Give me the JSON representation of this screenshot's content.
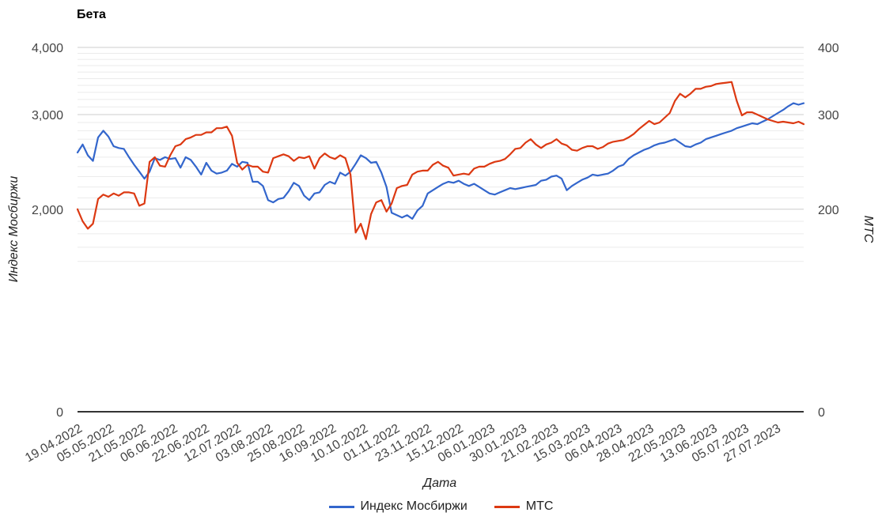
{
  "chart_data": {
    "type": "line",
    "title": "Бета",
    "xlabel": "Дата",
    "ylabel_left": "Индекс Мосбиржи",
    "ylabel_right": "МТС",
    "x_tick_labels": [
      "19.04.2022",
      "05.05.2022",
      "21.05.2022",
      "06.06.2022",
      "22.06.2022",
      "12.07.2022",
      "03.08.2022",
      "25.08.2022",
      "16.09.2022",
      "10.10.2022",
      "01.11.2022",
      "23.11.2022",
      "15.12.2022",
      "06.01.2023",
      "30.01.2023",
      "21.02.2023",
      "15.03.2023",
      "06.04.2023",
      "28.04.2023",
      "22.05.2023",
      "13.06.2023",
      "05.07.2023",
      "27.07.2023"
    ],
    "y_left_ticks": [
      "4,000",
      "3,000",
      "2,000",
      "0"
    ],
    "y_right_ticks": [
      "400",
      "300",
      "200",
      "0"
    ],
    "y_left_range": [
      0,
      4000
    ],
    "y_right_range": [
      0,
      400
    ],
    "grid": true,
    "legend_position": "bottom",
    "series": [
      {
        "name": "Индекс Мосбиржи",
        "color": "#3366cc",
        "axis": "left",
        "values": [
          2550,
          2640,
          2520,
          2460,
          2720,
          2800,
          2730,
          2620,
          2600,
          2590,
          2500,
          2420,
          2350,
          2280,
          2350,
          2490,
          2470,
          2500,
          2480,
          2490,
          2390,
          2500,
          2470,
          2400,
          2320,
          2440,
          2360,
          2330,
          2340,
          2360,
          2430,
          2400,
          2450,
          2440,
          2250,
          2250,
          2210,
          2080,
          2060,
          2090,
          2100,
          2160,
          2240,
          2210,
          2120,
          2080,
          2140,
          2150,
          2220,
          2250,
          2230,
          2340,
          2310,
          2350,
          2430,
          2520,
          2490,
          2440,
          2450,
          2340,
          2200,
          1970,
          1950,
          1930,
          1950,
          1920,
          1990,
          2030,
          2140,
          2170,
          2200,
          2230,
          2250,
          2240,
          2260,
          2230,
          2210,
          2230,
          2200,
          2170,
          2140,
          2130,
          2150,
          2170,
          2190,
          2180,
          2190,
          2200,
          2210,
          2220,
          2260,
          2270,
          2300,
          2310,
          2280,
          2170,
          2210,
          2240,
          2270,
          2290,
          2320,
          2310,
          2320,
          2330,
          2360,
          2400,
          2420,
          2480,
          2520,
          2550,
          2580,
          2600,
          2630,
          2650,
          2660,
          2680,
          2700,
          2660,
          2620,
          2610,
          2640,
          2660,
          2700,
          2720,
          2740,
          2760,
          2780,
          2800,
          2830,
          2850,
          2870,
          2890,
          2880,
          2910,
          2940,
          2980,
          3020,
          3060,
          3110,
          3150,
          3130,
          3150
        ]
      },
      {
        "name": "МТС",
        "color": "#dc3912",
        "axis": "right",
        "values": [
          200,
          190,
          184,
          188,
          209,
          213,
          211,
          214,
          212,
          215,
          215,
          214,
          203,
          205,
          245,
          250,
          241,
          240,
          252,
          262,
          264,
          270,
          272,
          275,
          275,
          278,
          278,
          283,
          283,
          285,
          274,
          244,
          237,
          242,
          240,
          240,
          235,
          234,
          249,
          251,
          253,
          251,
          246,
          250,
          249,
          251,
          238,
          249,
          254,
          250,
          248,
          252,
          249,
          232,
          181,
          188,
          176,
          196,
          206,
          208,
          198,
          205,
          219,
          221,
          222,
          232,
          235,
          236,
          236,
          242,
          245,
          241,
          239,
          231,
          232,
          233,
          232,
          238,
          240,
          240,
          243,
          245,
          246,
          248,
          253,
          259,
          260,
          266,
          270,
          264,
          260,
          264,
          266,
          270,
          265,
          263,
          258,
          257,
          260,
          262,
          262,
          259,
          261,
          265,
          267,
          268,
          269,
          272,
          276,
          282,
          287,
          292,
          288,
          290,
          296,
          302,
          318,
          328,
          323,
          328,
          335,
          335,
          338,
          339,
          342,
          343,
          344,
          345,
          318,
          299,
          303,
          303,
          300,
          297,
          294,
          292,
          290,
          291,
          290,
          289,
          291,
          288
        ]
      }
    ]
  }
}
